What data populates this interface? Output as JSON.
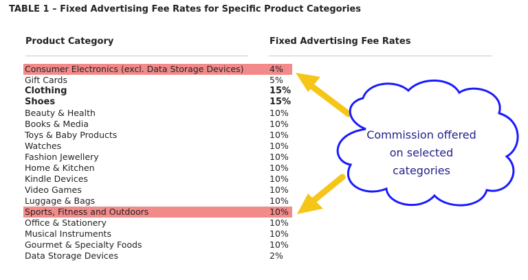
{
  "title": "TABLE 1 – Fixed Advertising Fee Rates for Specific Product Categories",
  "columns": {
    "category": "Product Category",
    "rate": "Fixed Advertising Fee Rates"
  },
  "rows": [
    {
      "category": "Consumer Electronics (excl. Data Storage Devices)",
      "rate": "4%",
      "highlight": true,
      "bold": false
    },
    {
      "category": "Gift Cards",
      "rate": "5%",
      "highlight": false,
      "bold": false
    },
    {
      "category": "Clothing",
      "rate": "15%",
      "highlight": false,
      "bold": true
    },
    {
      "category": "Shoes",
      "rate": "15%",
      "highlight": false,
      "bold": true
    },
    {
      "category": "Beauty & Health",
      "rate": "10%",
      "highlight": false,
      "bold": false
    },
    {
      "category": "Books & Media",
      "rate": "10%",
      "highlight": false,
      "bold": false
    },
    {
      "category": "Toys & Baby Products",
      "rate": "10%",
      "highlight": false,
      "bold": false
    },
    {
      "category": "Watches",
      "rate": "10%",
      "highlight": false,
      "bold": false
    },
    {
      "category": "Fashion Jewellery",
      "rate": "10%",
      "highlight": false,
      "bold": false
    },
    {
      "category": "Home & Kitchen",
      "rate": "10%",
      "highlight": false,
      "bold": false
    },
    {
      "category": "Kindle Devices",
      "rate": "10%",
      "highlight": false,
      "bold": false
    },
    {
      "category": "Video Games",
      "rate": "10%",
      "highlight": false,
      "bold": false
    },
    {
      "category": "Luggage & Bags",
      "rate": "10%",
      "highlight": false,
      "bold": false
    },
    {
      "category": "Sports, Fitness and Outdoors",
      "rate": "10%",
      "highlight": true,
      "bold": false
    },
    {
      "category": "Office & Stationery",
      "rate": "10%",
      "highlight": false,
      "bold": false
    },
    {
      "category": "Musical Instruments",
      "rate": "10%",
      "highlight": false,
      "bold": false
    },
    {
      "category": "Gourmet & Specialty Foods",
      "rate": "10%",
      "highlight": false,
      "bold": false
    },
    {
      "category": "Data Storage Devices",
      "rate": "2%",
      "highlight": false,
      "bold": false
    }
  ],
  "callout": {
    "lines": [
      "Commission offered",
      "on selected",
      "categories"
    ]
  },
  "colors": {
    "highlight": "#f28a8a",
    "arrow": "#f5c518",
    "cloud_fill": "#ffffff",
    "cloud_stroke": "#1a1aff",
    "callout_text": "#20208c"
  }
}
